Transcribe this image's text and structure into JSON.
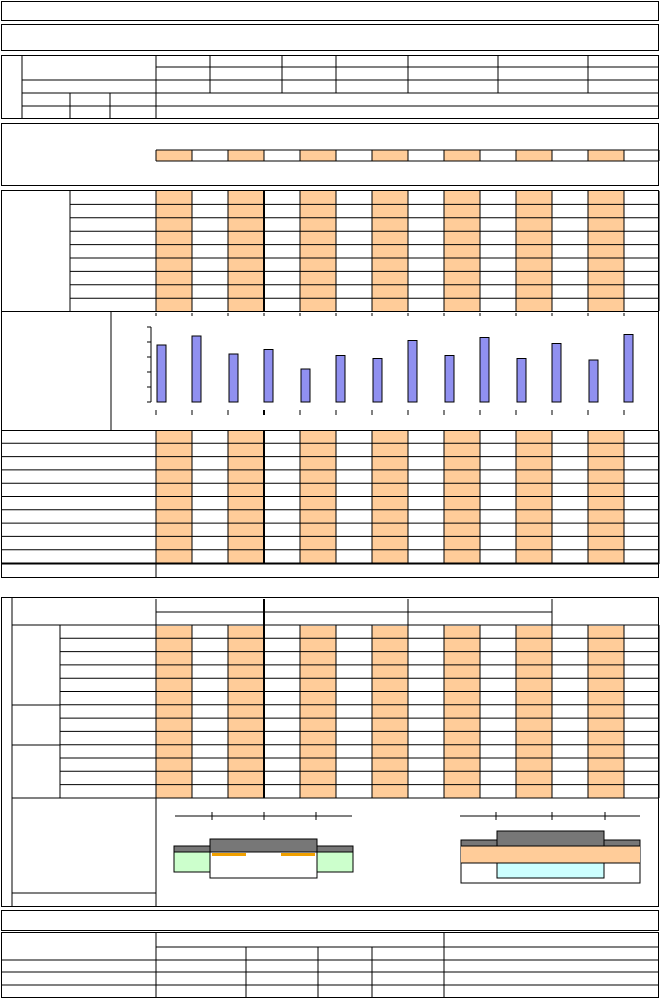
{
  "chart_data": {
    "type": "bar",
    "values": [
      3.8,
      4.4,
      3.2,
      3.5,
      2.2,
      3.1,
      2.9,
      4.1,
      3.1,
      4.3,
      2.9,
      3.9,
      2.8,
      4.5
    ],
    "color": "#9090f0",
    "ylim": [
      0,
      5
    ],
    "yticks": [
      0,
      1,
      2,
      3,
      4,
      5
    ]
  }
}
